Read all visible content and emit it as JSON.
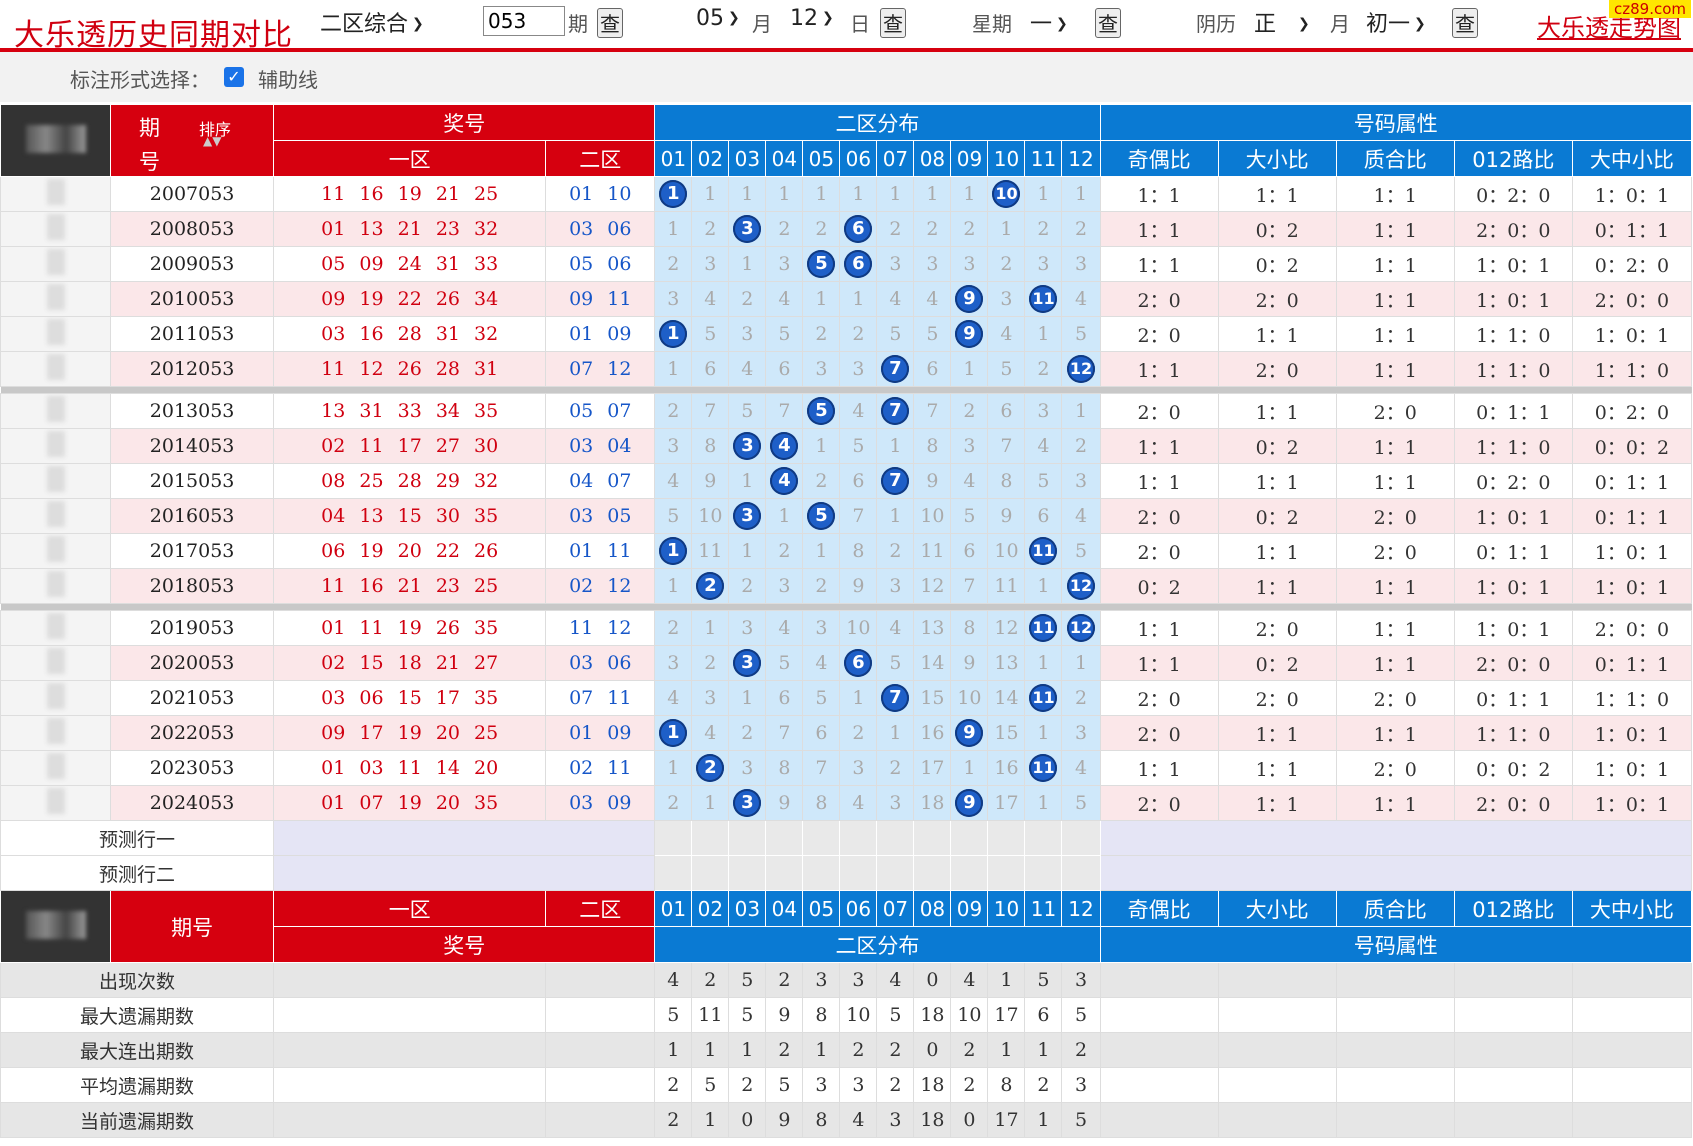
{
  "header": {
    "title": "大乐透历史同期对比",
    "mode": "二区综合",
    "issue_value": "053",
    "issue_suffix": "期",
    "month_value": "05",
    "month_suffix": "月",
    "day_value": "12",
    "day_suffix": "日",
    "week_label": "星期",
    "week_value": "一",
    "lunar_label": "阴历",
    "lunar_month": "正",
    "lunar_month_suffix": "月",
    "lunar_day": "初一",
    "query": "查",
    "link": "大乐透走势图",
    "badge": "cz89.com"
  },
  "options": {
    "label": "标注形式选择：",
    "checkbox_label": "辅助线",
    "checked": true
  },
  "table": {
    "h_issue_top": "期",
    "h_issue_bottom": "号",
    "h_sort": "排序",
    "h_prize": "奖号",
    "h_zone1": "一区",
    "h_zone2": "二区",
    "h_dist": "二区分布",
    "h_attr": "号码属性",
    "nums": [
      "01",
      "02",
      "03",
      "04",
      "05",
      "06",
      "07",
      "08",
      "09",
      "10",
      "11",
      "12"
    ],
    "attr_headers": [
      "奇偶比",
      "大小比",
      "质合比",
      "012路比",
      "大中小比"
    ],
    "h_issue_footer": "期号",
    "rows": [
      {
        "issue": "2007053",
        "front": "11 16 19 21 25",
        "back": "01 10",
        "cells": [
          "1",
          "1",
          "1",
          "1",
          "1",
          "1",
          "1",
          "1",
          "1",
          "10",
          "1",
          "1"
        ],
        "hits": [
          1,
          10
        ],
        "attrs": [
          "1：1",
          "1：1",
          "1：1",
          "0：2：0",
          "1：0：1"
        ]
      },
      {
        "issue": "2008053",
        "front": "01 13 21 23 32",
        "back": "03 06",
        "cells": [
          "1",
          "2",
          "3",
          "2",
          "2",
          "6",
          "2",
          "2",
          "2",
          "1",
          "2",
          "2"
        ],
        "hits": [
          3,
          6
        ],
        "attrs": [
          "1：1",
          "0：2",
          "1：1",
          "2：0：0",
          "0：1：1"
        ]
      },
      {
        "issue": "2009053",
        "front": "05 09 24 31 33",
        "back": "05 06",
        "cells": [
          "2",
          "3",
          "1",
          "3",
          "5",
          "6",
          "3",
          "3",
          "3",
          "2",
          "3",
          "3"
        ],
        "hits": [
          5,
          6
        ],
        "attrs": [
          "1：1",
          "0：2",
          "1：1",
          "1：0：1",
          "0：2：0"
        ]
      },
      {
        "issue": "2010053",
        "front": "09 19 22 26 34",
        "back": "09 11",
        "cells": [
          "3",
          "4",
          "2",
          "4",
          "1",
          "1",
          "4",
          "4",
          "9",
          "3",
          "11",
          "4"
        ],
        "hits": [
          9,
          11
        ],
        "attrs": [
          "2：0",
          "2：0",
          "1：1",
          "1：0：1",
          "2：0：0"
        ]
      },
      {
        "issue": "2011053",
        "front": "03 16 28 31 32",
        "back": "01 09",
        "cells": [
          "1",
          "5",
          "3",
          "5",
          "2",
          "2",
          "5",
          "5",
          "9",
          "4",
          "1",
          "5"
        ],
        "hits": [
          1,
          9
        ],
        "attrs": [
          "2：0",
          "1：1",
          "1：1",
          "1：1：0",
          "1：0：1"
        ]
      },
      {
        "issue": "2012053",
        "front": "11 12 26 28 31",
        "back": "07 12",
        "cells": [
          "1",
          "6",
          "4",
          "6",
          "3",
          "3",
          "7",
          "6",
          "1",
          "5",
          "2",
          "12"
        ],
        "hits": [
          7,
          12
        ],
        "attrs": [
          "1：1",
          "2：0",
          "1：1",
          "1：1：0",
          "1：1：0"
        ]
      },
      {
        "issue": "2013053",
        "front": "13 31 33 34 35",
        "back": "05 07",
        "cells": [
          "2",
          "7",
          "5",
          "7",
          "5",
          "4",
          "7",
          "7",
          "2",
          "6",
          "3",
          "1"
        ],
        "hits": [
          5,
          7
        ],
        "attrs": [
          "2：0",
          "1：1",
          "2：0",
          "0：1：1",
          "0：2：0"
        ]
      },
      {
        "issue": "2014053",
        "front": "02 11 17 27 30",
        "back": "03 04",
        "cells": [
          "3",
          "8",
          "3",
          "4",
          "1",
          "5",
          "1",
          "8",
          "3",
          "7",
          "4",
          "2"
        ],
        "hits": [
          3,
          4
        ],
        "attrs": [
          "1：1",
          "0：2",
          "1：1",
          "1：1：0",
          "0：0：2"
        ]
      },
      {
        "issue": "2015053",
        "front": "08 25 28 29 32",
        "back": "04 07",
        "cells": [
          "4",
          "9",
          "1",
          "4",
          "2",
          "6",
          "7",
          "9",
          "4",
          "8",
          "5",
          "3"
        ],
        "hits": [
          4,
          7
        ],
        "attrs": [
          "1：1",
          "1：1",
          "1：1",
          "0：2：0",
          "0：1：1"
        ]
      },
      {
        "issue": "2016053",
        "front": "04 13 15 30 35",
        "back": "03 05",
        "cells": [
          "5",
          "10",
          "3",
          "1",
          "5",
          "7",
          "1",
          "10",
          "5",
          "9",
          "6",
          "4"
        ],
        "hits": [
          3,
          5
        ],
        "attrs": [
          "2：0",
          "0：2",
          "2：0",
          "1：0：1",
          "0：1：1"
        ]
      },
      {
        "issue": "2017053",
        "front": "06 19 20 22 26",
        "back": "01 11",
        "cells": [
          "1",
          "11",
          "1",
          "2",
          "1",
          "8",
          "2",
          "11",
          "6",
          "10",
          "11",
          "5"
        ],
        "hits": [
          1,
          11
        ],
        "attrs": [
          "2：0",
          "1：1",
          "2：0",
          "0：1：1",
          "1：0：1"
        ]
      },
      {
        "issue": "2018053",
        "front": "11 16 21 23 25",
        "back": "02 12",
        "cells": [
          "1",
          "2",
          "2",
          "3",
          "2",
          "9",
          "3",
          "12",
          "7",
          "11",
          "1",
          "12"
        ],
        "hits": [
          2,
          12
        ],
        "attrs": [
          "0：2",
          "1：1",
          "1：1",
          "1：0：1",
          "1：0：1"
        ]
      },
      {
        "issue": "2019053",
        "front": "01 11 19 26 35",
        "back": "11 12",
        "cells": [
          "2",
          "1",
          "3",
          "4",
          "3",
          "10",
          "4",
          "13",
          "8",
          "12",
          "11",
          "12"
        ],
        "hits": [
          11,
          12
        ],
        "attrs": [
          "1：1",
          "2：0",
          "1：1",
          "1：0：1",
          "2：0：0"
        ]
      },
      {
        "issue": "2020053",
        "front": "02 15 18 21 27",
        "back": "03 06",
        "cells": [
          "3",
          "2",
          "3",
          "5",
          "4",
          "6",
          "5",
          "14",
          "9",
          "13",
          "1",
          "1"
        ],
        "hits": [
          3,
          6
        ],
        "attrs": [
          "1：1",
          "0：2",
          "1：1",
          "2：0：0",
          "0：1：1"
        ]
      },
      {
        "issue": "2021053",
        "front": "03 06 15 17 35",
        "back": "07 11",
        "cells": [
          "4",
          "3",
          "1",
          "6",
          "5",
          "1",
          "7",
          "15",
          "10",
          "14",
          "11",
          "2"
        ],
        "hits": [
          7,
          11
        ],
        "attrs": [
          "2：0",
          "2：0",
          "2：0",
          "0：1：1",
          "1：1：0"
        ]
      },
      {
        "issue": "2022053",
        "front": "09 17 19 20 25",
        "back": "01 09",
        "cells": [
          "1",
          "4",
          "2",
          "7",
          "6",
          "2",
          "1",
          "16",
          "9",
          "15",
          "1",
          "3"
        ],
        "hits": [
          1,
          9
        ],
        "attrs": [
          "2：0",
          "1：1",
          "1：1",
          "1：1：0",
          "1：0：1"
        ]
      },
      {
        "issue": "2023053",
        "front": "01 03 11 14 20",
        "back": "02 11",
        "cells": [
          "1",
          "2",
          "3",
          "8",
          "7",
          "3",
          "2",
          "17",
          "1",
          "16",
          "11",
          "4"
        ],
        "hits": [
          2,
          11
        ],
        "attrs": [
          "1：1",
          "1：1",
          "2：0",
          "0：0：2",
          "1：0：1"
        ]
      },
      {
        "issue": "2024053",
        "front": "01 07 19 20 35",
        "back": "03 09",
        "cells": [
          "2",
          "1",
          "3",
          "9",
          "8",
          "4",
          "3",
          "18",
          "9",
          "17",
          "1",
          "5"
        ],
        "hits": [
          3,
          9
        ],
        "attrs": [
          "2：0",
          "1：1",
          "1：1",
          "2：0：0",
          "1：0：1"
        ]
      }
    ],
    "pred": [
      "预测行一",
      "预测行二"
    ],
    "stats": [
      {
        "label": "出现次数",
        "values": [
          "4",
          "2",
          "5",
          "2",
          "3",
          "3",
          "4",
          "0",
          "4",
          "1",
          "5",
          "3"
        ]
      },
      {
        "label": "最大遗漏期数",
        "values": [
          "5",
          "11",
          "5",
          "9",
          "8",
          "10",
          "5",
          "18",
          "10",
          "17",
          "6",
          "5"
        ]
      },
      {
        "label": "最大连出期数",
        "values": [
          "1",
          "1",
          "1",
          "2",
          "1",
          "2",
          "2",
          "0",
          "2",
          "1",
          "1",
          "2"
        ]
      },
      {
        "label": "平均遗漏期数",
        "values": [
          "2",
          "5",
          "2",
          "5",
          "3",
          "3",
          "2",
          "18",
          "2",
          "8",
          "2",
          "3"
        ]
      },
      {
        "label": "当前遗漏期数",
        "values": [
          "2",
          "1",
          "0",
          "9",
          "8",
          "4",
          "3",
          "18",
          "0",
          "17",
          "1",
          "5"
        ]
      }
    ]
  }
}
